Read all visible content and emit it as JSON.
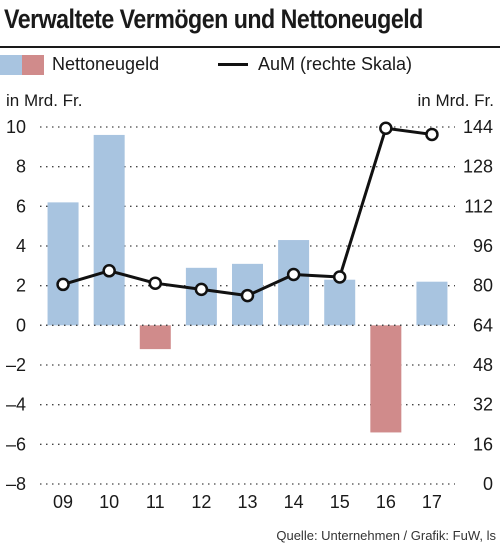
{
  "title": "Verwaltete Vermögen und Nettoneugeld",
  "legend": {
    "bar_label": "Nettoneugeld",
    "line_label": "AuM (rechte Skala)"
  },
  "units": {
    "left": "in Mrd. Fr.",
    "right": "in Mrd. Fr."
  },
  "source": "Quelle: Unternehmen / Grafik: FuW, ls",
  "colors": {
    "positive_bar": "#a8c4e0",
    "negative_bar": "#d08b8b",
    "line": "#111111",
    "marker_fill": "#ffffff"
  },
  "chart_data": {
    "type": "bar+line",
    "categories": [
      "09",
      "10",
      "11",
      "12",
      "13",
      "14",
      "15",
      "16",
      "17"
    ],
    "series": [
      {
        "name": "Nettoneugeld",
        "type": "bar",
        "axis": "left",
        "values": [
          6.2,
          9.6,
          -1.2,
          2.9,
          3.1,
          4.3,
          2.3,
          -5.4,
          2.2
        ]
      },
      {
        "name": "AuM (rechte Skala)",
        "type": "line",
        "axis": "right",
        "values": [
          80.5,
          86.0,
          81.0,
          78.5,
          76.0,
          84.5,
          83.5,
          143.5,
          141.0
        ]
      }
    ],
    "y_left": {
      "min": -8,
      "max": 10,
      "ticks": [
        "10",
        "8",
        "6",
        "4",
        "2",
        "0",
        "–2",
        "–4",
        "–6",
        "–8"
      ]
    },
    "y_right": {
      "min": 0,
      "max": 144,
      "ticks": [
        "144",
        "128",
        "112",
        "96",
        "80",
        "64",
        "48",
        "32",
        "16",
        "0"
      ]
    },
    "grid": "dotted-horizontal"
  }
}
